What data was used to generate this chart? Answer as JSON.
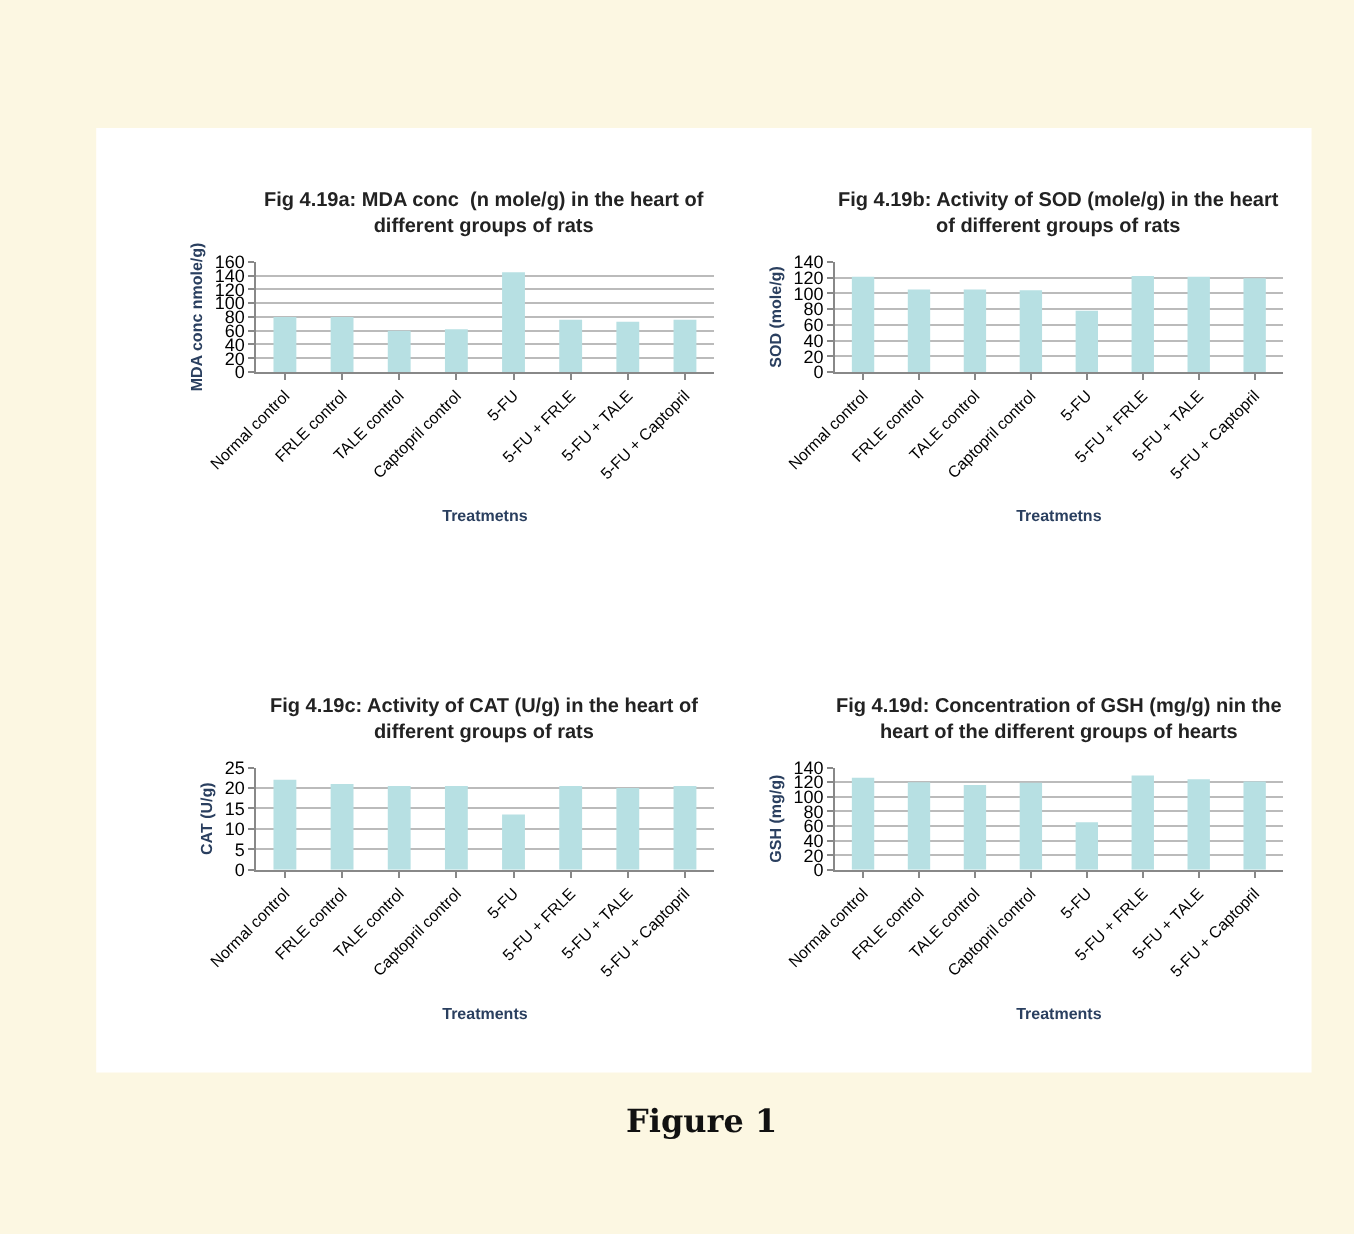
{
  "chart_data": [
    {
      "type": "bar",
      "title": "Fig 4.19a: MDA conc  (n mole/g) in the heart of different groups of rats",
      "xlabel": "Treatmetns",
      "ylabel": "MDA conc nmole/g)",
      "categories": [
        "Normal control",
        "FRLE control",
        "TALE control",
        "Captopril control",
        "5-FU",
        "5-FU + FRLE",
        "5-FU + TALE",
        "5-FU + Captopril"
      ],
      "values": [
        80,
        80,
        60,
        62,
        145,
        76,
        73,
        76
      ],
      "color": "#b7e0e3",
      "ylim": [
        0,
        160
      ],
      "yticks": [
        0,
        20,
        40,
        60,
        80,
        100,
        120,
        140,
        160
      ],
      "grid": "y"
    },
    {
      "type": "bar",
      "title": "Fig 4.19b: Activity of SOD (mole/g) in the heart of different groups of rats",
      "xlabel": "Treatmetns",
      "ylabel": "SOD (mole/g)",
      "categories": [
        "Normal control",
        "FRLE control",
        "TALE control",
        "Captopril control",
        "5-FU",
        "5-FU + FRLE",
        "5-FU + TALE",
        "5-FU + Captopril"
      ],
      "values": [
        121,
        105,
        105,
        104,
        78,
        122,
        121,
        119
      ],
      "color": "#b7e0e3",
      "ylim": [
        0,
        140
      ],
      "yticks": [
        0,
        20,
        40,
        60,
        80,
        100,
        120,
        140
      ],
      "grid": "y"
    },
    {
      "type": "bar",
      "title": "Fig 4.19c: Activity of CAT (U/g) in the heart of different groups of rats",
      "xlabel": "Treatments",
      "ylabel": "CAT (U/g)",
      "categories": [
        "Normal control",
        "FRLE control",
        "TALE control",
        "Captopril control",
        "5-FU",
        "5-FU + FRLE",
        "5-FU + TALE",
        "5-FU + Captopril"
      ],
      "values": [
        22,
        21,
        20.5,
        20.5,
        13.5,
        20.5,
        20,
        20.5
      ],
      "color": "#b7e0e3",
      "ylim": [
        0,
        25
      ],
      "yticks": [
        0,
        5,
        10,
        15,
        20,
        25
      ],
      "grid": "y"
    },
    {
      "type": "bar",
      "title": "Fig 4.19d: Concentration of GSH (mg/g) nin the heart of the different groups of hearts",
      "xlabel": "Treatments",
      "ylabel": "GSH (mg/g)",
      "categories": [
        "Normal control",
        "FRLE control",
        "TALE control",
        "Captopril control",
        "5-FU",
        "5-FU + FRLE",
        "5-FU + TALE",
        "5-FU + Captopril"
      ],
      "values": [
        126,
        120,
        116,
        119,
        65,
        129,
        124,
        121
      ],
      "color": "#b7e0e3",
      "ylim": [
        0,
        140
      ],
      "yticks": [
        0,
        20,
        40,
        60,
        80,
        100,
        120,
        140
      ],
      "grid": "y",
      "annotations": [
        "Figure 1"
      ]
    }
  ]
}
